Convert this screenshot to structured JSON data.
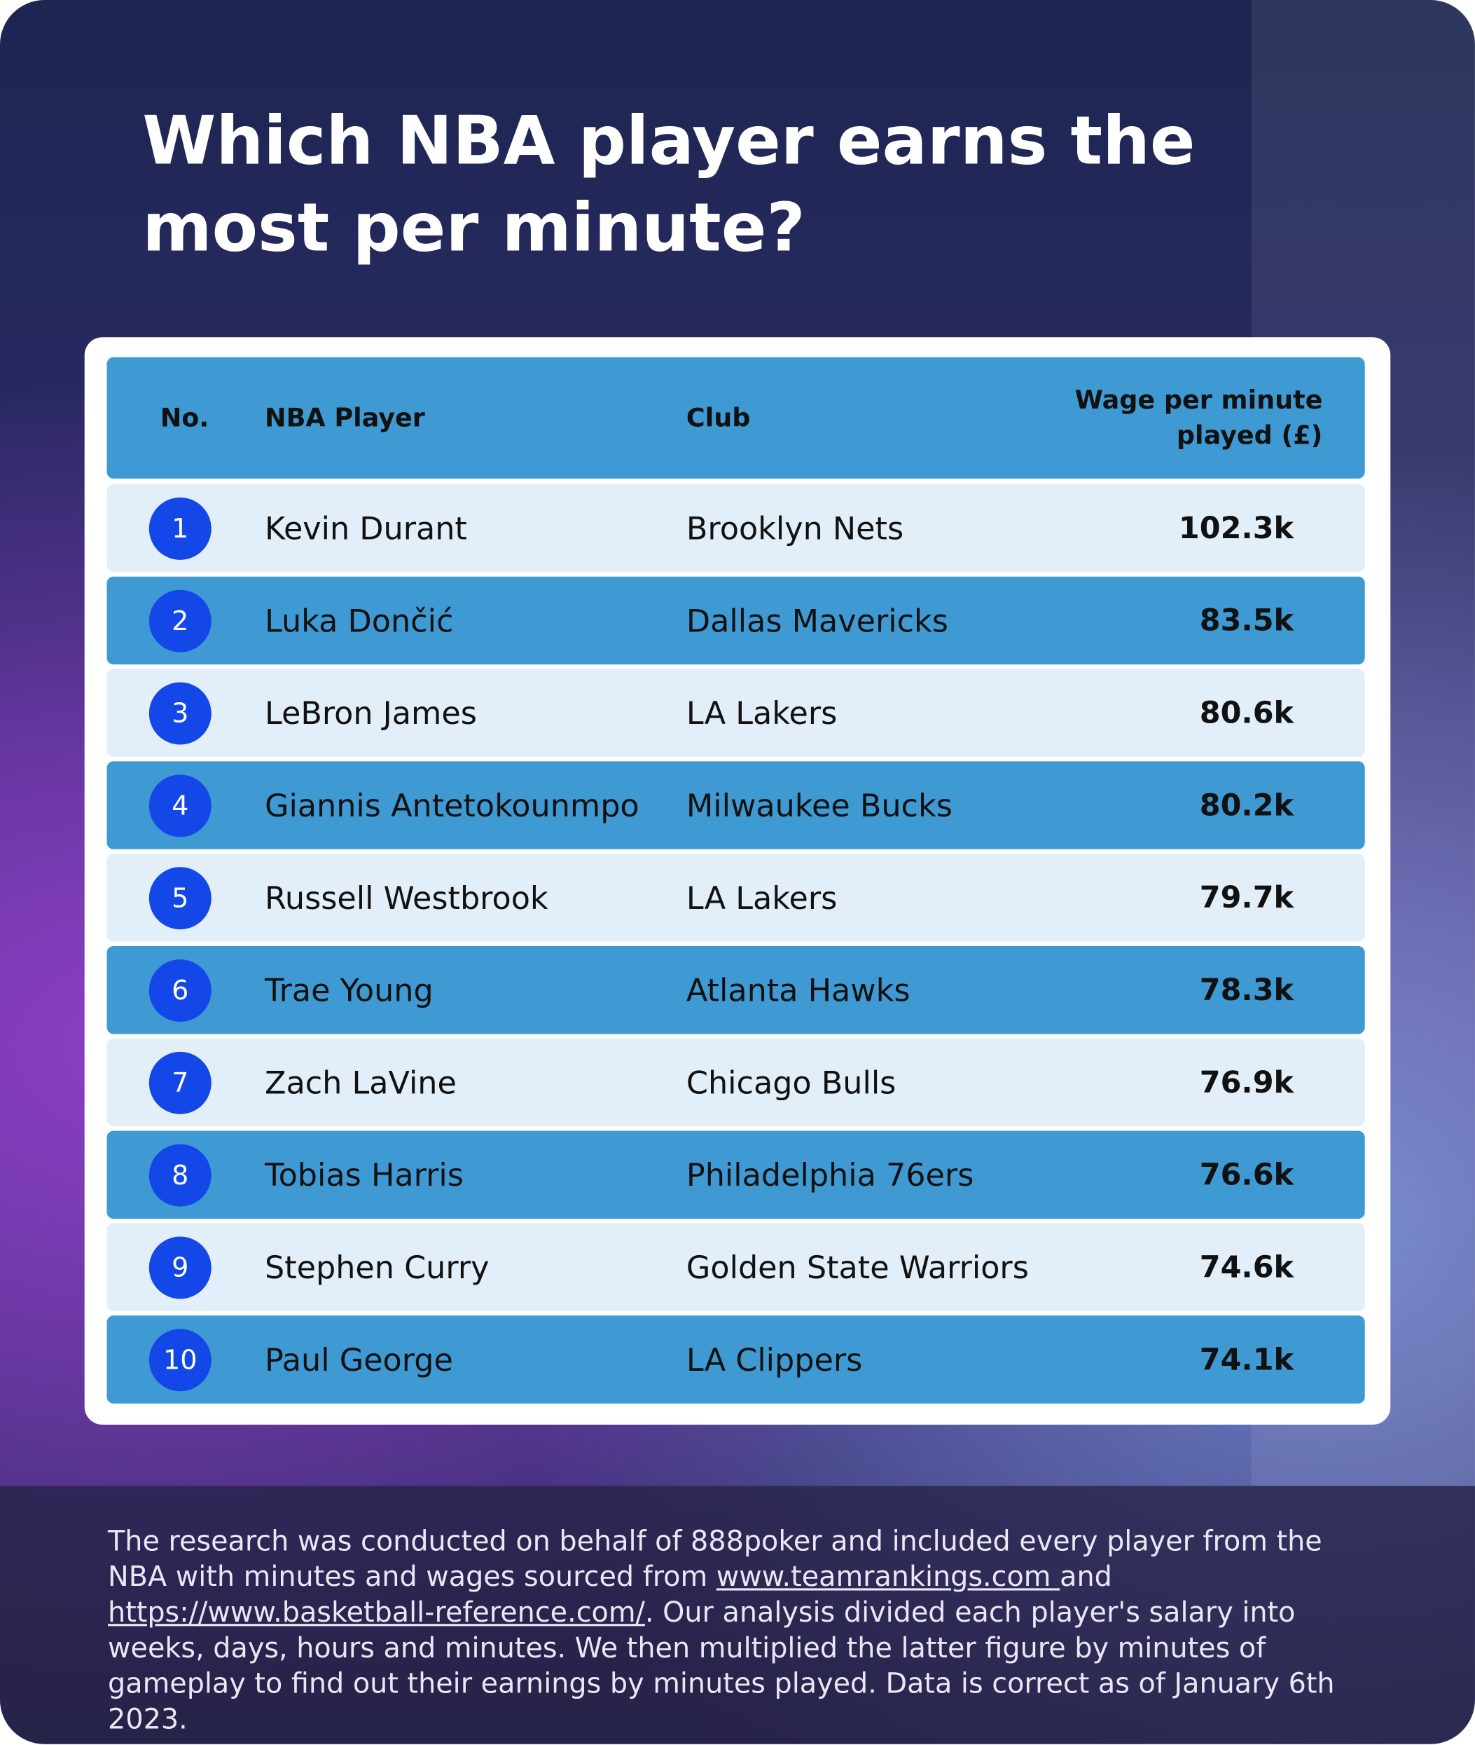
{
  "title": "Which NBA player earns the most per minute?",
  "table": {
    "headers": [
      "No.",
      "NBA Player",
      "Club",
      "Wage per minute played (£)"
    ],
    "rows": [
      [
        1,
        "Kevin Durant",
        "Brooklyn Nets",
        "102.3k"
      ],
      [
        2,
        "Luka Dončić",
        "Dallas Mavericks",
        "83.5k"
      ],
      [
        3,
        "LeBron James",
        "LA Lakers",
        "80.6k"
      ],
      [
        4,
        "Giannis Antetokounmpo",
        "Milwaukee Bucks",
        "80.2k"
      ],
      [
        5,
        "Russell Westbrook",
        "LA Lakers",
        "79.7k"
      ],
      [
        6,
        "Trae Young",
        "Atlanta Hawks",
        "78.3k"
      ],
      [
        7,
        "Zach LaVine",
        "Chicago Bulls",
        "76.9k"
      ],
      [
        8,
        "Tobias Harris",
        "Philadelphia 76ers",
        "76.6k"
      ],
      [
        9,
        "Stephen Curry",
        "Golden State Warriors",
        "74.6k"
      ],
      [
        10,
        "Paul George",
        "LA Clippers",
        "74.1k"
      ]
    ]
  },
  "footnote": {
    "parts": [
      "The research was conducted on behalf of 888poker and included every player from the NBA with minutes and wages sourced from ",
      "www.teamrankings.com ",
      "and ",
      "https://www.basketball-reference.com/",
      ". Our analysis divided each player's salary into weeks, days, hours and minutes. We then multiplied the latter figure by minutes of gameplay to find out their earnings by minutes played. Data is correct as of January 6th 2023."
    ]
  }
}
